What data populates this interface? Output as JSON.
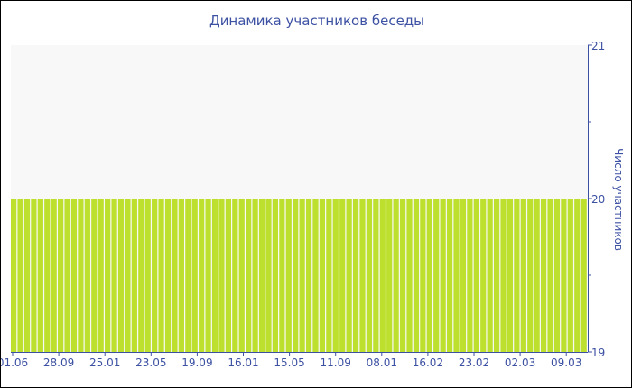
{
  "chart_data": {
    "type": "bar",
    "title": "Динамика участников беседы",
    "ylabel": "Число участников",
    "xlabel": "",
    "ylim": [
      19,
      21
    ],
    "yticks": [
      19,
      20,
      21
    ],
    "y_axis_position": "right",
    "grid": false,
    "x_tick_labels": [
      "01.06",
      "28.09",
      "25.01",
      "23.05",
      "19.09",
      "16.01",
      "15.05",
      "11.09",
      "08.01",
      "16.02",
      "23.02",
      "02.03",
      "09.03"
    ],
    "values": [
      20,
      20,
      20,
      20,
      20,
      20,
      20,
      20,
      20,
      20,
      20,
      20,
      20,
      20,
      20,
      20,
      20,
      20,
      20,
      20,
      20,
      20,
      20,
      20,
      20,
      20,
      20,
      20,
      20,
      20,
      20,
      20,
      20,
      20,
      20,
      20,
      20,
      20,
      20,
      20,
      20,
      20,
      20,
      20,
      20,
      20,
      20,
      20,
      20,
      20,
      20,
      20,
      20,
      20,
      20,
      20,
      20,
      20,
      20,
      20,
      20,
      20,
      20,
      20,
      20,
      20,
      20,
      20,
      20,
      20,
      20,
      20,
      20,
      20,
      20,
      20,
      20,
      20,
      20,
      20,
      20,
      20,
      20,
      20,
      20,
      20
    ],
    "colors": {
      "bar": "#bde02f",
      "axis": "#3d51a3",
      "plot_background": "#f8f8f8"
    }
  }
}
